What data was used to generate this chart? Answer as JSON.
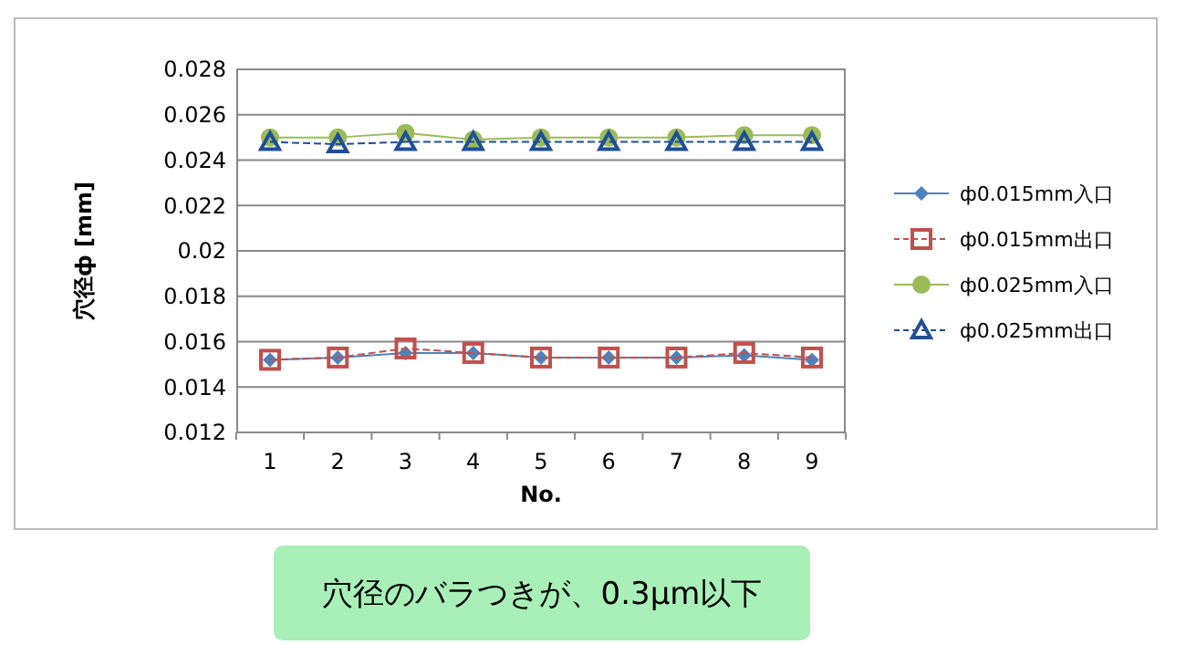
{
  "chart_data": {
    "type": "line",
    "xlabel": "No.",
    "ylabel": "穴径ф [mm]",
    "categories": [
      "1",
      "2",
      "3",
      "4",
      "5",
      "6",
      "7",
      "8",
      "9"
    ],
    "series": [
      {
        "name": "ф0.015mm入口",
        "color": "#4f81bd",
        "marker": "diamond",
        "line_style": "solid",
        "values": [
          0.0152,
          0.0153,
          0.0155,
          0.0155,
          0.0153,
          0.0153,
          0.0153,
          0.0154,
          0.0152
        ]
      },
      {
        "name": "ф0.015mm出口",
        "color": "#c0504d",
        "marker": "square",
        "line_style": "dashed",
        "values": [
          0.0152,
          0.0153,
          0.0157,
          0.0155,
          0.0153,
          0.0153,
          0.0153,
          0.0155,
          0.0153
        ]
      },
      {
        "name": "ф0.025mm入口",
        "color": "#9bbb59",
        "marker": "circle",
        "line_style": "solid",
        "values": [
          0.025,
          0.025,
          0.0252,
          0.0249,
          0.025,
          0.025,
          0.025,
          0.0251,
          0.0251
        ]
      },
      {
        "name": "ф0.025mm出口",
        "color": "#1f4e99",
        "marker": "triangle",
        "line_style": "dashed",
        "values": [
          0.0248,
          0.0247,
          0.0248,
          0.0248,
          0.0248,
          0.0248,
          0.0248,
          0.0248,
          0.0248
        ]
      }
    ],
    "ylim": [
      0.012,
      0.028
    ],
    "yticks": [
      0.012,
      0.014,
      0.016,
      0.018,
      0.02,
      0.022,
      0.024,
      0.026,
      0.028
    ],
    "grid": "y",
    "legend": "right",
    "annotations": [
      "穴径のバラつきが、0.3μm以下"
    ]
  }
}
